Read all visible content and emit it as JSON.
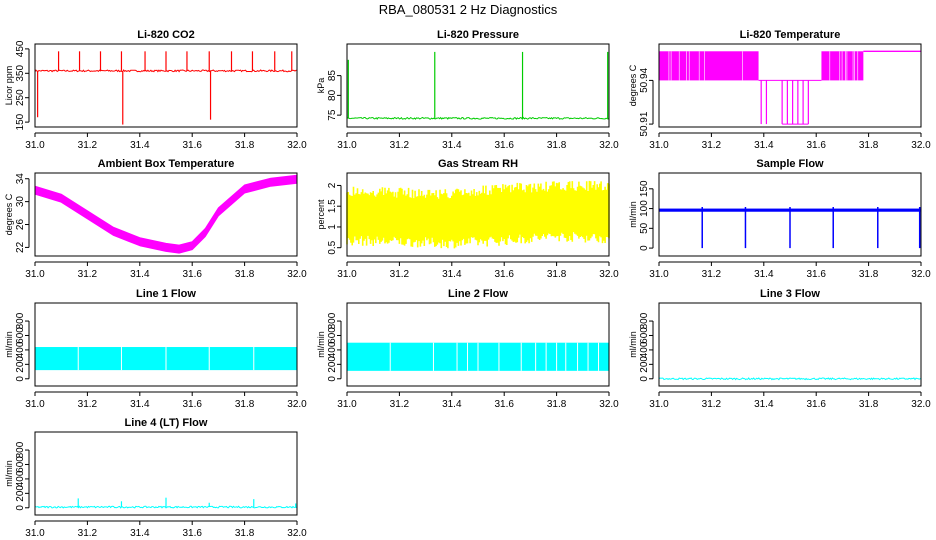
{
  "figure": {
    "title": "RBA_080531  2 Hz Diagnostics"
  },
  "colors": {
    "red": "#ff0000",
    "green": "#00cc00",
    "magenta": "#ff00ff",
    "yellow": "#ffff00",
    "blue": "#0000ff",
    "cyan": "#00ffff",
    "axis": "#000000"
  },
  "chart_data": [
    {
      "type": "line",
      "title": "Li-820 CO2",
      "ylabel": "Licor ppm",
      "color": "red",
      "xlim": [
        31.0,
        32.0
      ],
      "ylim": [
        130,
        470
      ],
      "xticks": [
        "31.0",
        "31.2",
        "31.4",
        "31.6",
        "31.8",
        "32.0"
      ],
      "yticks": [
        150,
        250,
        350,
        450
      ],
      "baseline": 360,
      "spikes": [
        {
          "x": 31.01,
          "y": 170
        },
        {
          "x": 31.09,
          "y": 440
        },
        {
          "x": 31.17,
          "y": 440
        },
        {
          "x": 31.25,
          "y": 440
        },
        {
          "x": 31.33,
          "y": 440
        },
        {
          "x": 31.335,
          "y": 140
        },
        {
          "x": 31.42,
          "y": 440
        },
        {
          "x": 31.5,
          "y": 440
        },
        {
          "x": 31.58,
          "y": 440
        },
        {
          "x": 31.665,
          "y": 440
        },
        {
          "x": 31.67,
          "y": 160
        },
        {
          "x": 31.75,
          "y": 440
        },
        {
          "x": 31.83,
          "y": 440
        },
        {
          "x": 31.915,
          "y": 440
        },
        {
          "x": 31.98,
          "y": 440
        }
      ]
    },
    {
      "type": "line",
      "title": "Li-820 Pressure",
      "ylabel": "kPa",
      "color": "green",
      "xlim": [
        31.0,
        32.0
      ],
      "ylim": [
        72,
        93
      ],
      "xticks": [
        "31.0",
        "31.2",
        "31.4",
        "31.6",
        "31.8",
        "32.0"
      ],
      "yticks": [
        75,
        80,
        85
      ],
      "baseline": 74.2,
      "spikes": [
        {
          "x": 31.005,
          "y": 89
        },
        {
          "x": 31.335,
          "y": 91
        },
        {
          "x": 31.67,
          "y": 91
        },
        {
          "x": 31.995,
          "y": 91
        }
      ]
    },
    {
      "type": "line",
      "title": "Li-820 Temperature",
      "ylabel": "degrees C",
      "color": "magenta",
      "xlim": [
        31.0,
        32.0
      ],
      "ylim": [
        50.908,
        50.965
      ],
      "xticks": [
        "31.0",
        "31.2",
        "31.4",
        "31.6",
        "31.8",
        "32.0"
      ],
      "yticks": [
        50.91,
        50.94
      ],
      "levels": [
        50.91,
        50.94,
        50.96
      ],
      "segments": [
        {
          "x0": 31.0,
          "x1": 31.38,
          "pattern": "dense",
          "low": 50.94,
          "high": 50.96
        },
        {
          "x0": 31.38,
          "x1": 31.62,
          "pattern": "drops",
          "low": 50.91,
          "high": 50.94
        },
        {
          "x0": 31.62,
          "x1": 31.78,
          "pattern": "dense",
          "low": 50.94,
          "high": 50.96
        },
        {
          "x0": 31.78,
          "x1": 32.0,
          "pattern": "flat",
          "low": 50.96,
          "high": 50.962
        }
      ]
    },
    {
      "type": "line",
      "title": "Ambient Box Temperature",
      "ylabel": "degrees C",
      "color": "magenta",
      "xlim": [
        31.0,
        32.0
      ],
      "ylim": [
        20.5,
        35
      ],
      "xticks": [
        "31.0",
        "31.2",
        "31.4",
        "31.6",
        "31.8",
        "32.0"
      ],
      "yticks": [
        22,
        26,
        30,
        34
      ],
      "x": [
        31.0,
        31.1,
        31.2,
        31.3,
        31.4,
        31.5,
        31.55,
        31.6,
        31.65,
        31.7,
        31.8,
        31.9,
        32.0
      ],
      "y": [
        32,
        30.6,
        27.7,
        24.8,
        23.0,
        22.0,
        21.7,
        22.3,
        24.6,
        28.2,
        32.2,
        33.4,
        33.9
      ],
      "band": 0.7
    },
    {
      "type": "area",
      "title": "Gas Stream RH",
      "ylabel": "percent",
      "color": "yellow",
      "xlim": [
        31.0,
        32.0
      ],
      "ylim": [
        0.3,
        2.3
      ],
      "xticks": [
        "31.0",
        "31.2",
        "31.4",
        "31.6",
        "31.8",
        "32.0"
      ],
      "yticks": [
        0.5,
        1.0,
        1.5,
        2.0
      ],
      "x": [
        31.0,
        31.2,
        31.4,
        31.6,
        31.8,
        32.0
      ],
      "upper": [
        2.0,
        1.95,
        1.92,
        2.05,
        2.1,
        2.12
      ],
      "lower": [
        0.55,
        0.52,
        0.48,
        0.55,
        0.65,
        0.6
      ]
    },
    {
      "type": "line",
      "title": "Sample Flow",
      "ylabel": "ml/min",
      "color": "blue",
      "xlim": [
        31.0,
        32.0
      ],
      "ylim": [
        -20,
        190
      ],
      "xticks": [
        "31.0",
        "31.2",
        "31.4",
        "31.6",
        "31.8",
        "32.0"
      ],
      "yticks": [
        0,
        50,
        100,
        150
      ],
      "baseline": 96,
      "band": 4,
      "dips": [
        31.165,
        31.33,
        31.5,
        31.665,
        31.835,
        31.995
      ]
    },
    {
      "type": "area",
      "title": "Line 1 Flow",
      "ylabel": "ml/min",
      "color": "cyan",
      "xlim": [
        31.0,
        32.0
      ],
      "ylim": [
        -100,
        1050
      ],
      "xticks": [
        "31.0",
        "31.2",
        "31.4",
        "31.6",
        "31.8",
        "32.0"
      ],
      "yticks": [
        0,
        200,
        400,
        600,
        800
      ],
      "upper": 440,
      "lower": 120,
      "gaps": [
        31.165,
        31.33,
        31.5,
        31.665,
        31.835
      ]
    },
    {
      "type": "area",
      "title": "Line 2 Flow",
      "ylabel": "ml/min",
      "color": "cyan",
      "xlim": [
        31.0,
        32.0
      ],
      "ylim": [
        -100,
        1050
      ],
      "xticks": [
        "31.0",
        "31.2",
        "31.4",
        "31.6",
        "31.8",
        "32.0"
      ],
      "yticks": [
        0,
        200,
        400,
        600,
        800
      ],
      "upper": 500,
      "lower": 110,
      "gaps": [
        31.165,
        31.33,
        31.42,
        31.46,
        31.5,
        31.58,
        31.665,
        31.72,
        31.76,
        31.8,
        31.835,
        31.88,
        31.92,
        31.96
      ]
    },
    {
      "type": "line",
      "title": "Line 3 Flow",
      "ylabel": "ml/min",
      "color": "cyan",
      "xlim": [
        31.0,
        32.0
      ],
      "ylim": [
        -100,
        1050
      ],
      "xticks": [
        "31.0",
        "31.2",
        "31.4",
        "31.6",
        "31.8",
        "32.0"
      ],
      "yticks": [
        0,
        200,
        400,
        600,
        800
      ],
      "baseline": 0
    },
    {
      "type": "line",
      "title": "Line 4 (LT) Flow",
      "ylabel": "ml/min",
      "color": "cyan",
      "xlim": [
        31.0,
        32.0
      ],
      "ylim": [
        -100,
        1050
      ],
      "xticks": [
        "31.0",
        "31.2",
        "31.4",
        "31.6",
        "31.8",
        "32.0"
      ],
      "yticks": [
        0,
        200,
        400,
        600,
        800
      ],
      "baseline": 10,
      "spikes": [
        {
          "x": 31.165,
          "y": 130
        },
        {
          "x": 31.33,
          "y": 90
        },
        {
          "x": 31.5,
          "y": 140
        },
        {
          "x": 31.665,
          "y": 70
        },
        {
          "x": 31.835,
          "y": 120
        },
        {
          "x": 31.995,
          "y": 60
        }
      ]
    }
  ]
}
